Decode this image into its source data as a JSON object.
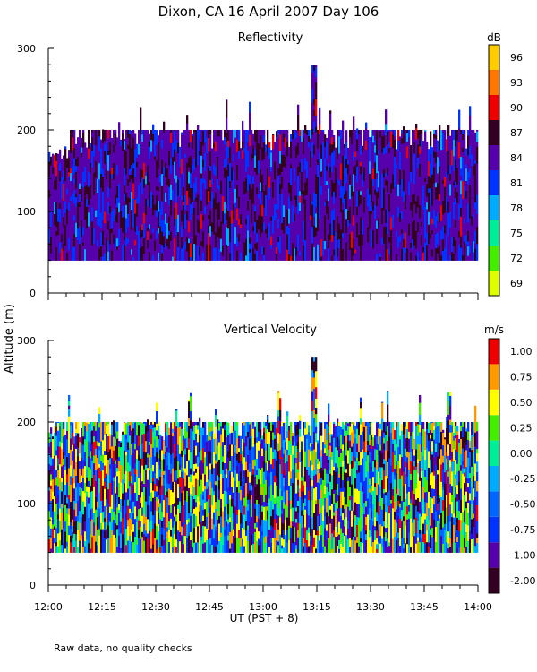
{
  "figure": {
    "title": "Dixon, CA 16 April 2007  Day 106",
    "ylabel": "Altitude (m)",
    "xlabel": "UT  (PST + 8)",
    "footnote": "Raw data, no quality checks"
  },
  "chart_data": [
    {
      "type": "heatmap",
      "title": "Reflectivity",
      "units": "dB",
      "ylim": [
        0,
        300
      ],
      "yticks": [
        0,
        100,
        200,
        300
      ],
      "xlim": [
        0,
        120
      ],
      "xtick_labels": [
        "12:00",
        "12:15",
        "12:30",
        "12:45",
        "13:00",
        "13:15",
        "13:30",
        "13:45",
        "14:00"
      ],
      "data_altitude_range_m": [
        40,
        200
      ],
      "max_echo_top_m": 280,
      "max_echo_top_time": "13:14",
      "colorbar": {
        "ticks": [
          69,
          72,
          75,
          78,
          81,
          84,
          87,
          90,
          93,
          96
        ],
        "colors": [
          "#ddff00",
          "#44ee00",
          "#00ee99",
          "#00aaff",
          "#0033ff",
          "#5500aa",
          "#330022",
          "#ee0000",
          "#ff7700",
          "#ffcc00"
        ]
      }
    },
    {
      "type": "heatmap",
      "title": "Vertical Velocity",
      "units": "m/s",
      "ylim": [
        0,
        300
      ],
      "yticks": [
        0,
        100,
        200,
        300
      ],
      "xlim": [
        0,
        120
      ],
      "xtick_labels": [
        "12:00",
        "12:15",
        "12:30",
        "12:45",
        "13:00",
        "13:15",
        "13:30",
        "13:45",
        "14:00"
      ],
      "data_altitude_range_m": [
        40,
        200
      ],
      "max_echo_top_m": 280,
      "max_echo_top_time": "13:14",
      "colorbar": {
        "ticks": [
          "-2.00",
          "-1.00",
          "-0.75",
          "-0.50",
          "-0.25",
          "0.00",
          "0.25",
          "0.50",
          "0.75",
          "1.00"
        ],
        "colors": [
          "#330022",
          "#5500aa",
          "#0033ff",
          "#0066ff",
          "#00aaff",
          "#00ee99",
          "#44ee00",
          "#ffff00",
          "#ff9900",
          "#ee0000"
        ]
      }
    }
  ]
}
